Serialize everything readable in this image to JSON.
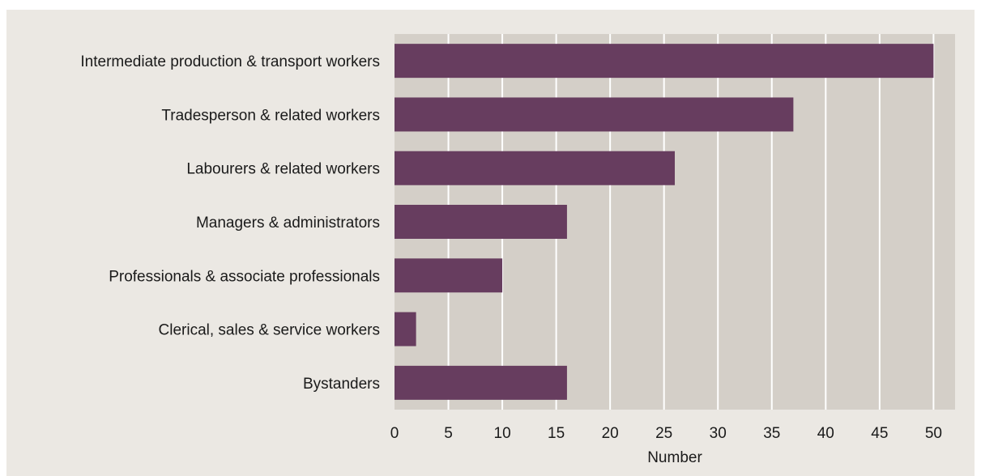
{
  "chart_data": {
    "type": "bar",
    "orientation": "horizontal",
    "categories": [
      "Intermediate production & transport workers",
      "Tradesperson & related workers",
      "Labourers & related workers",
      "Managers & administrators",
      "Professionals & associate professionals",
      "Clerical, sales & service workers",
      "Bystanders"
    ],
    "values": [
      50,
      37,
      26,
      16,
      10,
      2,
      16
    ],
    "xlabel": "Number",
    "ylabel": "",
    "xlim": [
      0,
      52
    ],
    "xticks": [
      0,
      5,
      10,
      15,
      20,
      25,
      30,
      35,
      40,
      45,
      50
    ],
    "grid": "vertical",
    "legend": "none"
  },
  "colors": {
    "bar": "#673d5f",
    "plot_background": "#d4cfc8",
    "page_background": "#ebe8e3",
    "grid": "#ffffff"
  }
}
